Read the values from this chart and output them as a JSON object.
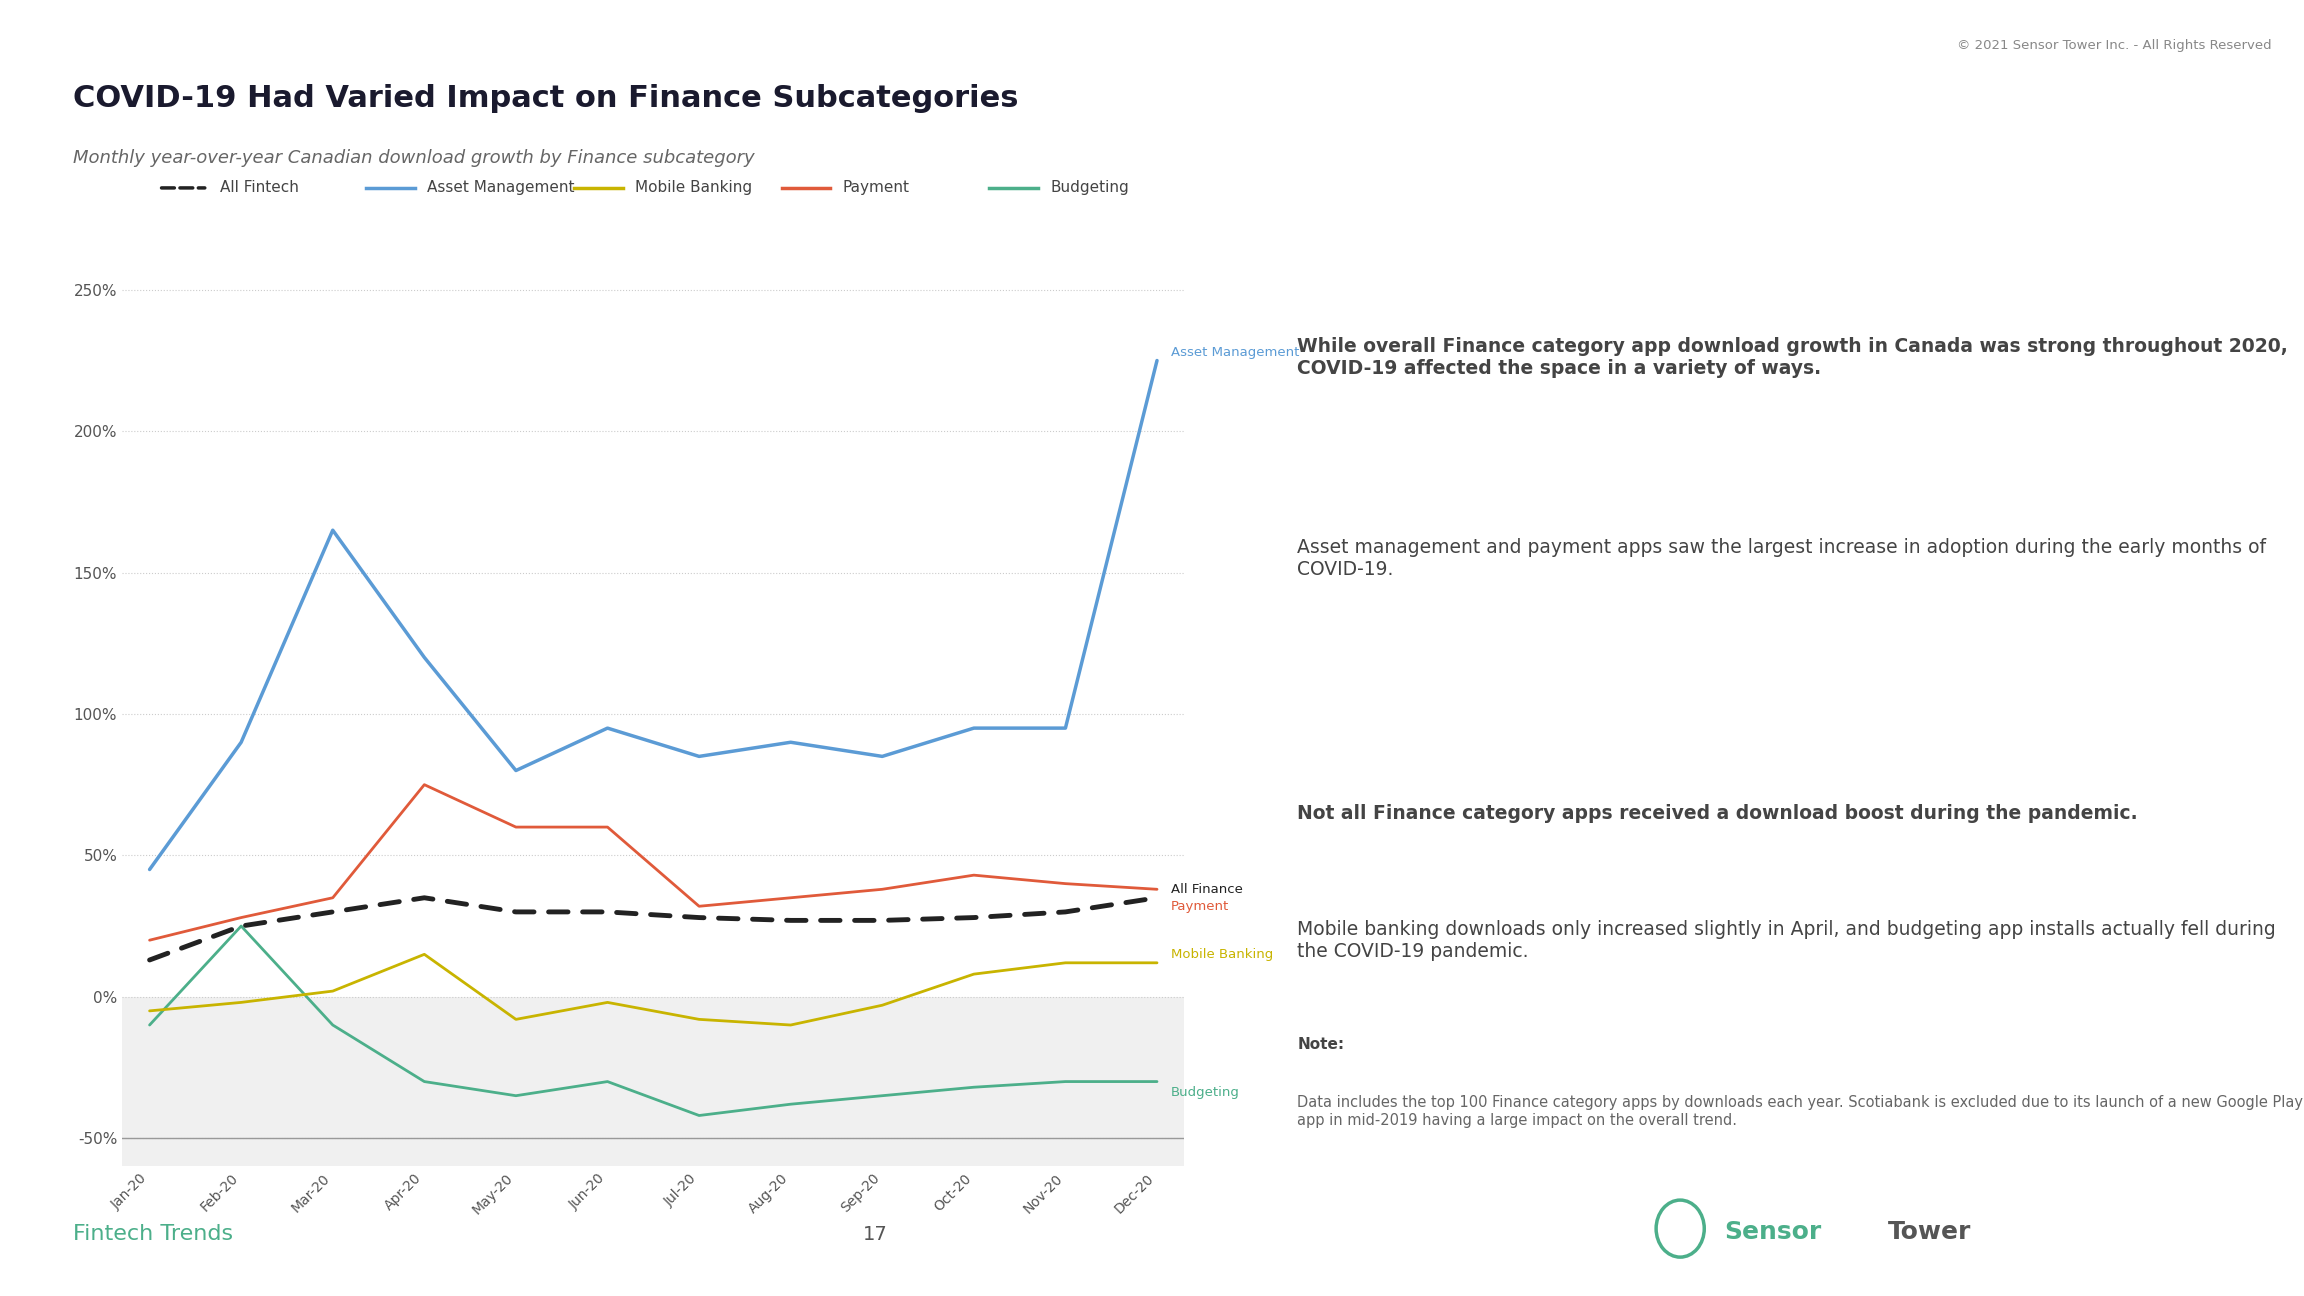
{
  "title": "COVID-19 Had Varied Impact on Finance Subcategories",
  "subtitle": "Monthly year-over-year Canadian download growth by Finance subcategory",
  "copyright": "© 2021 Sensor Tower Inc. - All Rights Reserved",
  "footer_left": "Fintech Trends",
  "footer_center": "17",
  "months": [
    "Jan-20",
    "Feb-20",
    "Mar-20",
    "Apr-20",
    "May-20",
    "Jun-20",
    "Jul-20",
    "Aug-20",
    "Sep-20",
    "Oct-20",
    "Nov-20",
    "Dec-20"
  ],
  "series": {
    "All Fintech": {
      "values": [
        13,
        25,
        30,
        35,
        30,
        30,
        28,
        27,
        27,
        28,
        30,
        35
      ],
      "color": "#222222",
      "linestyle": "dashed",
      "linewidth": 3.5,
      "zorder": 5,
      "label_pos": "right",
      "label": "All Finance"
    },
    "Asset Management": {
      "values": [
        45,
        90,
        165,
        120,
        80,
        95,
        85,
        90,
        85,
        95,
        95,
        225
      ],
      "color": "#5b9bd5",
      "linestyle": "solid",
      "linewidth": 2.5,
      "zorder": 4,
      "label_pos": "right",
      "label": "Asset Management"
    },
    "Mobile Banking": {
      "values": [
        -5,
        -2,
        2,
        15,
        -8,
        -2,
        -8,
        -10,
        -3,
        8,
        12,
        12
      ],
      "color": "#c8b400",
      "linestyle": "solid",
      "linewidth": 2.0,
      "zorder": 3,
      "label_pos": "right",
      "label": "Mobile Banking"
    },
    "Payment": {
      "values": [
        20,
        28,
        35,
        75,
        60,
        60,
        32,
        35,
        38,
        43,
        40,
        38
      ],
      "color": "#e05a3a",
      "linestyle": "solid",
      "linewidth": 2.0,
      "zorder": 3,
      "label_pos": "right",
      "label": "Payment"
    },
    "Budgeting": {
      "values": [
        -10,
        25,
        -10,
        -30,
        -35,
        -30,
        -42,
        -38,
        -35,
        -32,
        -30,
        -30
      ],
      "color": "#4caf8a",
      "linestyle": "solid",
      "linewidth": 2.0,
      "zorder": 3,
      "label_pos": "right",
      "label": "Budgeting"
    }
  },
  "ylim": [
    -60,
    270
  ],
  "yticks": [
    -50,
    0,
    50,
    100,
    150,
    200,
    250
  ],
  "ytick_labels": [
    "-50%",
    "0%",
    "50%",
    "100%",
    "150%",
    "200%",
    "250%"
  ],
  "bg_color": "#ffffff",
  "plot_bg_below_zero": "#f0f0f0",
  "right_panel_bg": "#f2f2f2",
  "grid_color": "#cccccc",
  "title_color": "#1a1a2e",
  "subtitle_color": "#666666",
  "note_title": "Note:",
  "note_text": "Data includes the top 100 Finance category apps by downloads each year. Scotiabank is excluded due to its launch of a new Google Play app in mid-2019 having a large impact on the overall trend.",
  "right_text_1_bold": "While overall Finance category app download growth in Canada was strong throughout 2020, COVID-19 affected the space in a variety of ways.",
  "right_text_1_normal": " Asset management and payment apps saw the largest increase in adoption during the early months of COVID-19.",
  "right_text_2_bold": "Not all Finance category apps received a download boost during the pandemic.",
  "right_text_2_normal": " Mobile banking downloads only increased slightly in April, and budgeting app installs actually fell during the COVID-19 pandemic.",
  "sensor_tower_color": "#4caf8a",
  "fintech_trends_color": "#4caf8a"
}
